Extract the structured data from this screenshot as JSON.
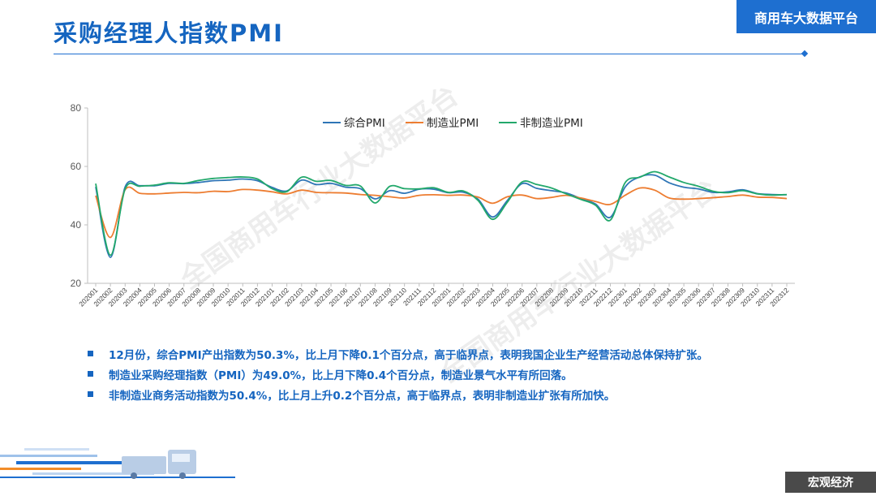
{
  "header": {
    "title": "采购经理人指数PMI",
    "badge": "商用车大数据平台"
  },
  "footer": {
    "tag": "宏观经济"
  },
  "watermark": "全国商用车行业大数据平台",
  "bullets": [
    "12月份，综合PMI产出指数为50.3%，比上月下降0.1个百分点，高于临界点，表明我国企业生产经营活动总体保持扩张。",
    "制造业采购经理指数（PMI）为49.0%，比上月下降0.4个百分点，制造业景气水平有所回落。",
    "非制造业商务活动指数为50.4%，比上月上升0.2个百分点，高于临界点，表明非制造业扩张有所加快。"
  ],
  "colors": {
    "accent": "#1565c0",
    "composite": "#2e75b6",
    "manufacturing": "#ed7d31",
    "non_manufacturing": "#22a86b",
    "footer": "#4a4a4a"
  },
  "chart_data": {
    "type": "line",
    "title": "",
    "xlabel": "",
    "ylabel": "",
    "ylim": [
      20,
      80
    ],
    "yticks": [
      20,
      40,
      60,
      80
    ],
    "grid": false,
    "legend_position": "top",
    "categories": [
      "202001",
      "202002",
      "202003",
      "202004",
      "202005",
      "202006",
      "202007",
      "202008",
      "202009",
      "202010",
      "202011",
      "202012",
      "202101",
      "202102",
      "202103",
      "202104",
      "202105",
      "202106",
      "202107",
      "202108",
      "202109",
      "202110",
      "202111",
      "202112",
      "202201",
      "202202",
      "202203",
      "202204",
      "202205",
      "202206",
      "202207",
      "202208",
      "202209",
      "202210",
      "202211",
      "202212",
      "202301",
      "202302",
      "202303",
      "202304",
      "202305",
      "202306",
      "202307",
      "202308",
      "202309",
      "202310",
      "202311",
      "202312"
    ],
    "series": [
      {
        "name": "综合PMI",
        "color": "#2e75b6",
        "values": [
          53.0,
          28.9,
          53.0,
          53.4,
          53.4,
          54.2,
          54.1,
          54.5,
          55.1,
          55.3,
          55.7,
          55.1,
          52.8,
          51.6,
          55.3,
          53.8,
          54.2,
          52.9,
          52.4,
          48.9,
          51.7,
          50.8,
          52.2,
          52.2,
          51.0,
          51.2,
          48.8,
          42.7,
          48.4,
          54.1,
          52.5,
          51.7,
          50.9,
          49.0,
          47.1,
          42.6,
          52.9,
          56.4,
          57.0,
          54.4,
          52.9,
          52.3,
          51.1,
          51.3,
          52.0,
          50.7,
          50.4,
          50.3
        ]
      },
      {
        "name": "制造业PMI",
        "color": "#ed7d31",
        "values": [
          50.0,
          35.7,
          52.0,
          50.8,
          50.6,
          50.9,
          51.1,
          51.0,
          51.5,
          51.4,
          52.1,
          51.9,
          51.3,
          50.6,
          51.9,
          51.1,
          51.0,
          50.9,
          50.4,
          50.1,
          49.6,
          49.2,
          50.1,
          50.3,
          50.1,
          50.2,
          49.5,
          47.4,
          49.6,
          50.2,
          49.0,
          49.4,
          50.1,
          49.2,
          48.0,
          47.0,
          50.1,
          52.6,
          51.9,
          49.2,
          48.8,
          49.0,
          49.3,
          49.7,
          50.2,
          49.5,
          49.4,
          49.0
        ]
      },
      {
        "name": "非制造业PMI",
        "color": "#22a86b",
        "values": [
          54.1,
          29.6,
          52.3,
          53.2,
          53.6,
          54.4,
          54.2,
          55.2,
          55.9,
          56.2,
          56.4,
          55.7,
          52.4,
          51.4,
          56.3,
          54.9,
          55.2,
          53.5,
          53.3,
          47.5,
          53.2,
          52.4,
          52.3,
          52.7,
          51.1,
          51.6,
          48.4,
          41.9,
          47.8,
          54.7,
          53.8,
          52.6,
          50.6,
          48.7,
          46.7,
          41.6,
          54.4,
          56.3,
          58.2,
          56.4,
          54.5,
          53.2,
          51.5,
          51.0,
          51.7,
          50.6,
          50.2,
          50.4
        ]
      }
    ]
  }
}
